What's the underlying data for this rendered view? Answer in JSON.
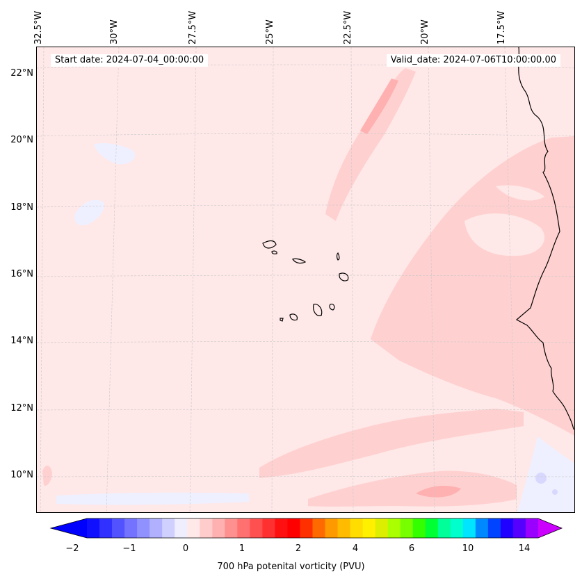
{
  "map": {
    "start_date": "Start date: 2024-07-04_00:00:00",
    "valid_date": "Valid_date: 2024-07-06T10:00:00.00",
    "longitude_labels": [
      "32.5°W",
      "30°W",
      "27.5°W",
      "25°W",
      "22.5°W",
      "20°W",
      "17.5°W"
    ],
    "latitude_labels": [
      "22°N",
      "20°N",
      "18°N",
      "16°N",
      "14°N",
      "12°N",
      "10°N"
    ],
    "colors": {
      "background": "#ffe8e8",
      "light_red": "#ffd0d0",
      "medium_red": "#ffb0b0",
      "light_blue": "#eef0ff",
      "blue": "#d8d8ff",
      "coastline": "#000000",
      "grid": "#c8c8c8"
    }
  },
  "colorbar": {
    "label": "700 hPa potenital vorticity (PVU)",
    "tick_labels": [
      "−2",
      "−1",
      "0",
      "1",
      "2",
      "4",
      "6",
      "10",
      "14"
    ],
    "colors": [
      "#1010ff",
      "#3030ff",
      "#5252ff",
      "#7373ff",
      "#9090ff",
      "#b0b0ff",
      "#d0d0ff",
      "#eeeeff",
      "#ffe8e8",
      "#ffcccc",
      "#ffb0b0",
      "#ff9090",
      "#ff7070",
      "#ff5050",
      "#ff3030",
      "#ff1010",
      "#ff0000",
      "#ff3000",
      "#ff6a00",
      "#ff9900",
      "#ffbb00",
      "#ffdd00",
      "#fff000",
      "#ddee00",
      "#aaff00",
      "#77ff00",
      "#33ff00",
      "#00ff33",
      "#00ff99",
      "#00ffcc",
      "#00e5ff",
      "#0088ff",
      "#0044ff",
      "#2000ff",
      "#5500ff",
      "#9900ff"
    ],
    "min_color": "#0000ff",
    "max_color": "#cc00ff"
  }
}
